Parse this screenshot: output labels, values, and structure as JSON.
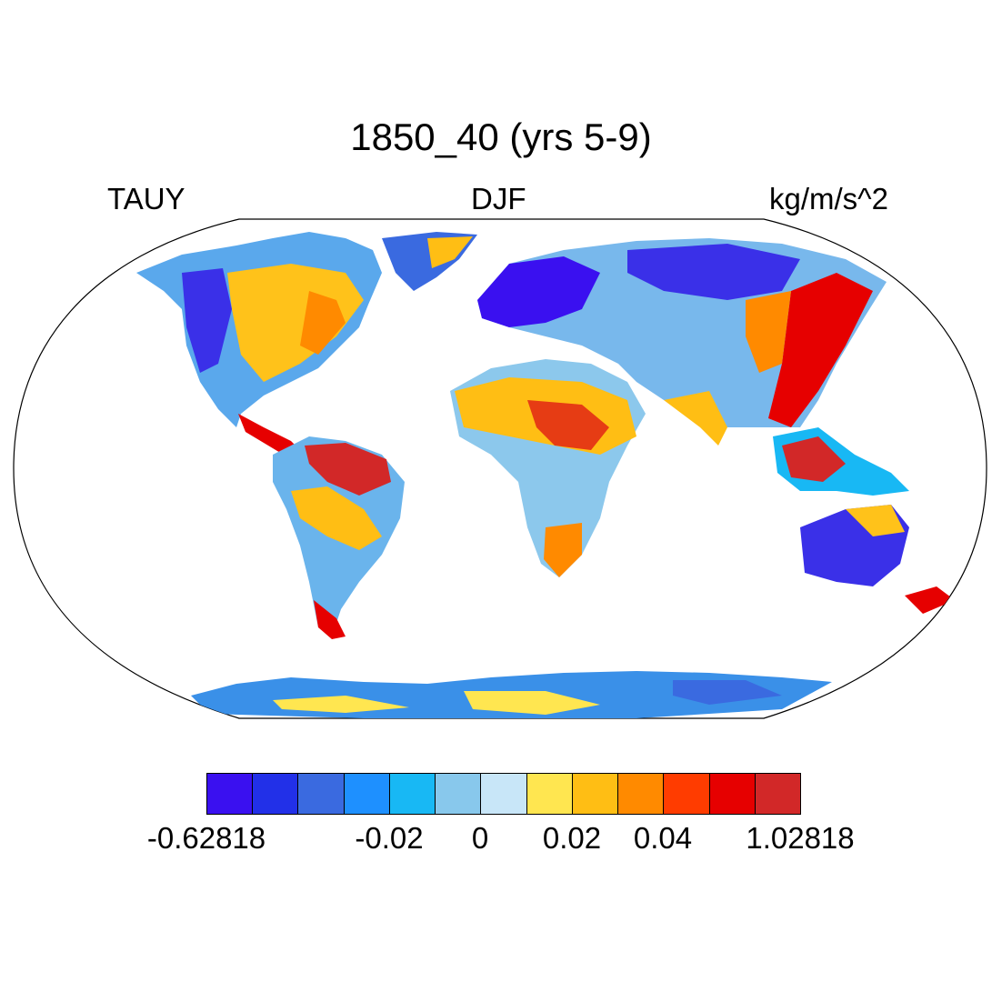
{
  "title": "1850_40 (yrs 5-9)",
  "left_label": "TAUY",
  "center_label": "DJF",
  "right_label": "kg/m/s^2",
  "colorbar": {
    "colors": [
      "#3a10f0",
      "#2230e8",
      "#3a6ae0",
      "#1e90ff",
      "#18b8f4",
      "#88c8ec",
      "#c8e6f8",
      "#ffe650",
      "#ffbe14",
      "#ff8a00",
      "#ff3c00",
      "#e60000",
      "#d22828"
    ],
    "labels": [
      "-0.62818",
      "-0.02",
      "0",
      "0.02",
      "0.04",
      "1.02818"
    ]
  }
}
